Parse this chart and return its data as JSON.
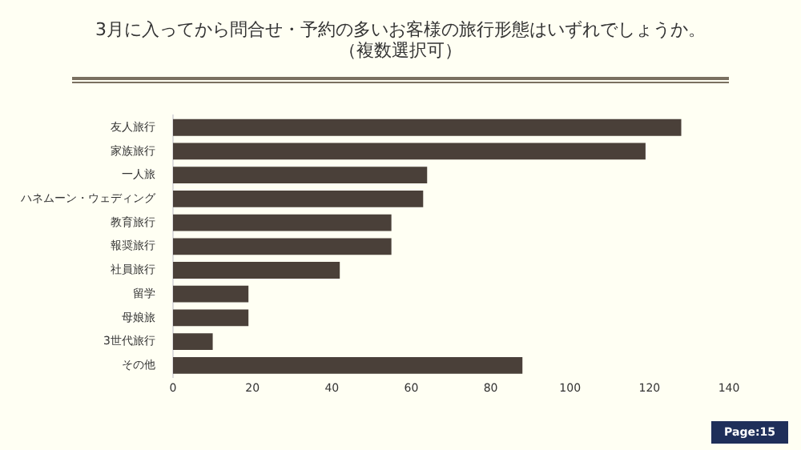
{
  "chart_data": {
    "type": "bar",
    "orientation": "horizontal",
    "title": "3月に入ってから問合せ・予約の多いお客様の旅行形態はいずれでしょうか。",
    "subtitle": "（複数選択可）",
    "categories": [
      "友人旅行",
      "家族旅行",
      "一人旅",
      "ハネムーン・ウェディング",
      "教育旅行",
      "報奨旅行",
      "社員旅行",
      "留学",
      "母娘旅",
      "3世代旅行",
      "その他"
    ],
    "values": [
      128,
      119,
      64,
      63,
      55,
      55,
      42,
      19,
      19,
      10,
      88
    ],
    "color": "#4a4039",
    "xlim": [
      0,
      140
    ],
    "xticks": [
      0,
      20,
      40,
      60,
      80,
      100,
      120,
      140
    ],
    "grid": false,
    "legend": false,
    "annotations": [
      "Page:15"
    ]
  }
}
